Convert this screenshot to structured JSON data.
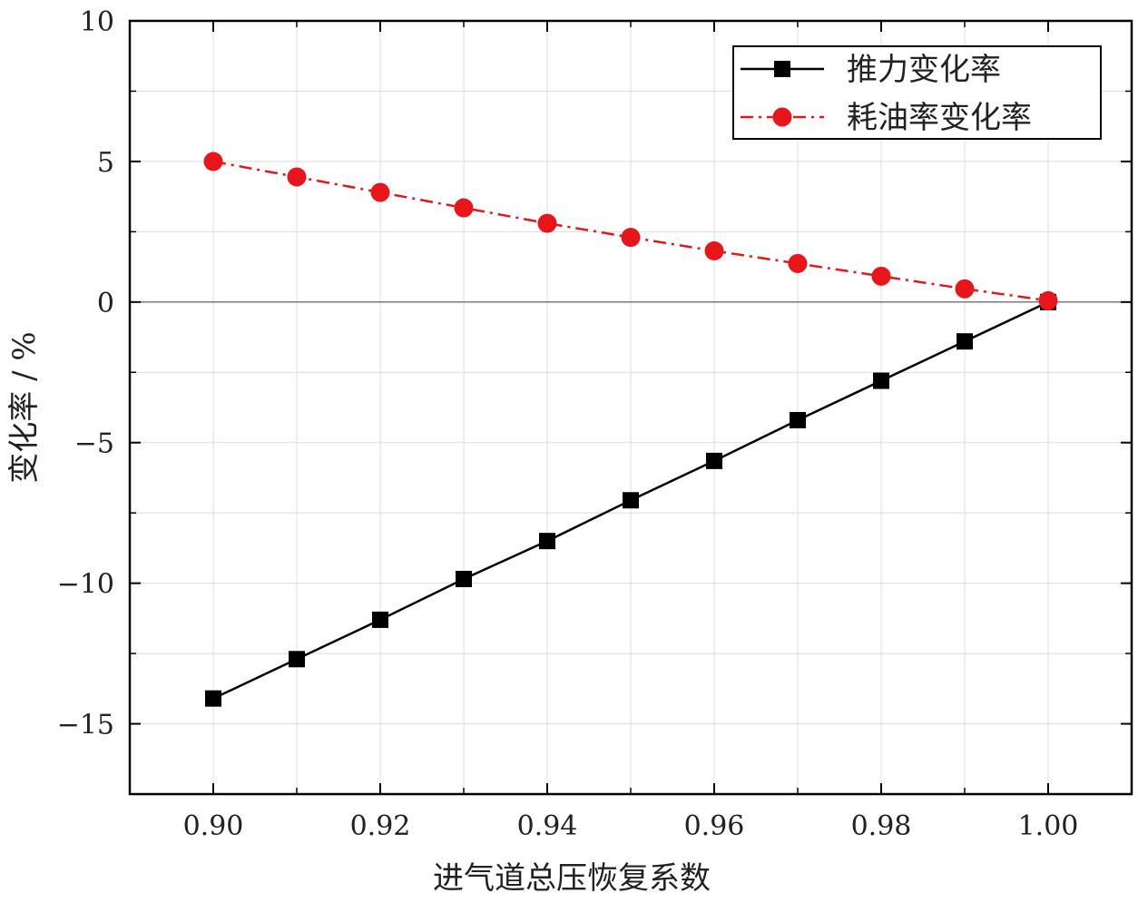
{
  "chart_data": {
    "type": "line",
    "xlabel": "进气道总压恢复系数",
    "ylabel": "变化率 / %",
    "xlim": [
      0.89,
      1.01
    ],
    "ylim": [
      -17.5,
      10
    ],
    "x_ticks": [
      0.9,
      0.92,
      0.94,
      0.96,
      0.98,
      1.0
    ],
    "x_tick_labels": [
      "0.90",
      "0.92",
      "0.94",
      "0.96",
      "0.98",
      "1.00"
    ],
    "y_ticks": [
      10,
      5,
      0,
      -5,
      -10,
      -15
    ],
    "y_tick_labels": [
      "10",
      "5",
      "0",
      "−5",
      "−10",
      "−15"
    ],
    "grid": true,
    "legend_position": "top-right",
    "x": [
      0.9,
      0.91,
      0.92,
      0.93,
      0.94,
      0.95,
      0.96,
      0.97,
      0.98,
      0.99,
      1.0
    ],
    "series": [
      {
        "name": "推力变化率",
        "marker": "square",
        "line_style": "solid",
        "color": "#000000",
        "values": [
          -14.1,
          -12.7,
          -11.3,
          -9.85,
          -8.5,
          -7.05,
          -5.65,
          -4.2,
          -2.8,
          -1.4,
          0
        ]
      },
      {
        "name": "耗油率变化率",
        "marker": "circle",
        "line_style": "dash-dot",
        "color": "#e8161b",
        "values": [
          5.0,
          4.45,
          3.9,
          3.35,
          2.8,
          2.3,
          1.82,
          1.37,
          0.92,
          0.47,
          0.05
        ]
      }
    ]
  }
}
